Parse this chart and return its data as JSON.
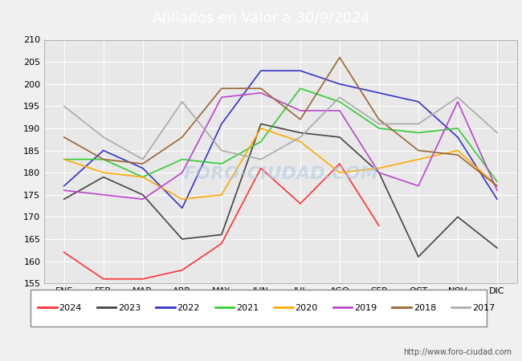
{
  "title": "Afiliados en Válor a 30/9/2024",
  "ylim": [
    155,
    210
  ],
  "yticks": [
    155,
    160,
    165,
    170,
    175,
    180,
    185,
    190,
    195,
    200,
    205,
    210
  ],
  "months": [
    "ENE",
    "FEB",
    "MAR",
    "ABR",
    "MAY",
    "JUN",
    "JUL",
    "AGO",
    "SEP",
    "OCT",
    "NOV",
    "DIC"
  ],
  "series": {
    "2024": {
      "color": "#ff3333",
      "data": [
        162,
        156,
        156,
        158,
        164,
        181,
        173,
        182,
        168,
        null,
        null,
        null
      ]
    },
    "2023": {
      "color": "#444444",
      "data": [
        174,
        179,
        175,
        165,
        166,
        191,
        189,
        188,
        180,
        161,
        170,
        163
      ]
    },
    "2022": {
      "color": "#3333cc",
      "data": [
        177,
        185,
        181,
        172,
        191,
        203,
        203,
        200,
        198,
        196,
        188,
        174
      ]
    },
    "2021": {
      "color": "#33cc33",
      "data": [
        183,
        183,
        179,
        183,
        182,
        187,
        199,
        196,
        190,
        189,
        190,
        178
      ]
    },
    "2020": {
      "color": "#ffaa00",
      "data": [
        183,
        180,
        179,
        174,
        175,
        190,
        187,
        180,
        181,
        183,
        185,
        177
      ]
    },
    "2019": {
      "color": "#bb44cc",
      "data": [
        176,
        175,
        174,
        180,
        197,
        198,
        194,
        194,
        180,
        177,
        196,
        176
      ]
    },
    "2018": {
      "color": "#996633",
      "data": [
        188,
        183,
        182,
        188,
        199,
        199,
        192,
        206,
        192,
        185,
        184,
        177
      ]
    },
    "2017": {
      "color": "#aaaaaa",
      "data": [
        195,
        188,
        183,
        196,
        185,
        183,
        188,
        197,
        191,
        191,
        197,
        189
      ]
    }
  },
  "legend_order": [
    "2024",
    "2023",
    "2022",
    "2021",
    "2020",
    "2019",
    "2018",
    "2017"
  ],
  "watermark": "FORO-CIUDAD.COM",
  "footer_text": "http://www.foro-ciudad.com",
  "plot_bg": "#e8e8e8",
  "grid_color": "#ffffff",
  "title_bg": "#4477cc",
  "fig_bg": "#f0f0f0"
}
